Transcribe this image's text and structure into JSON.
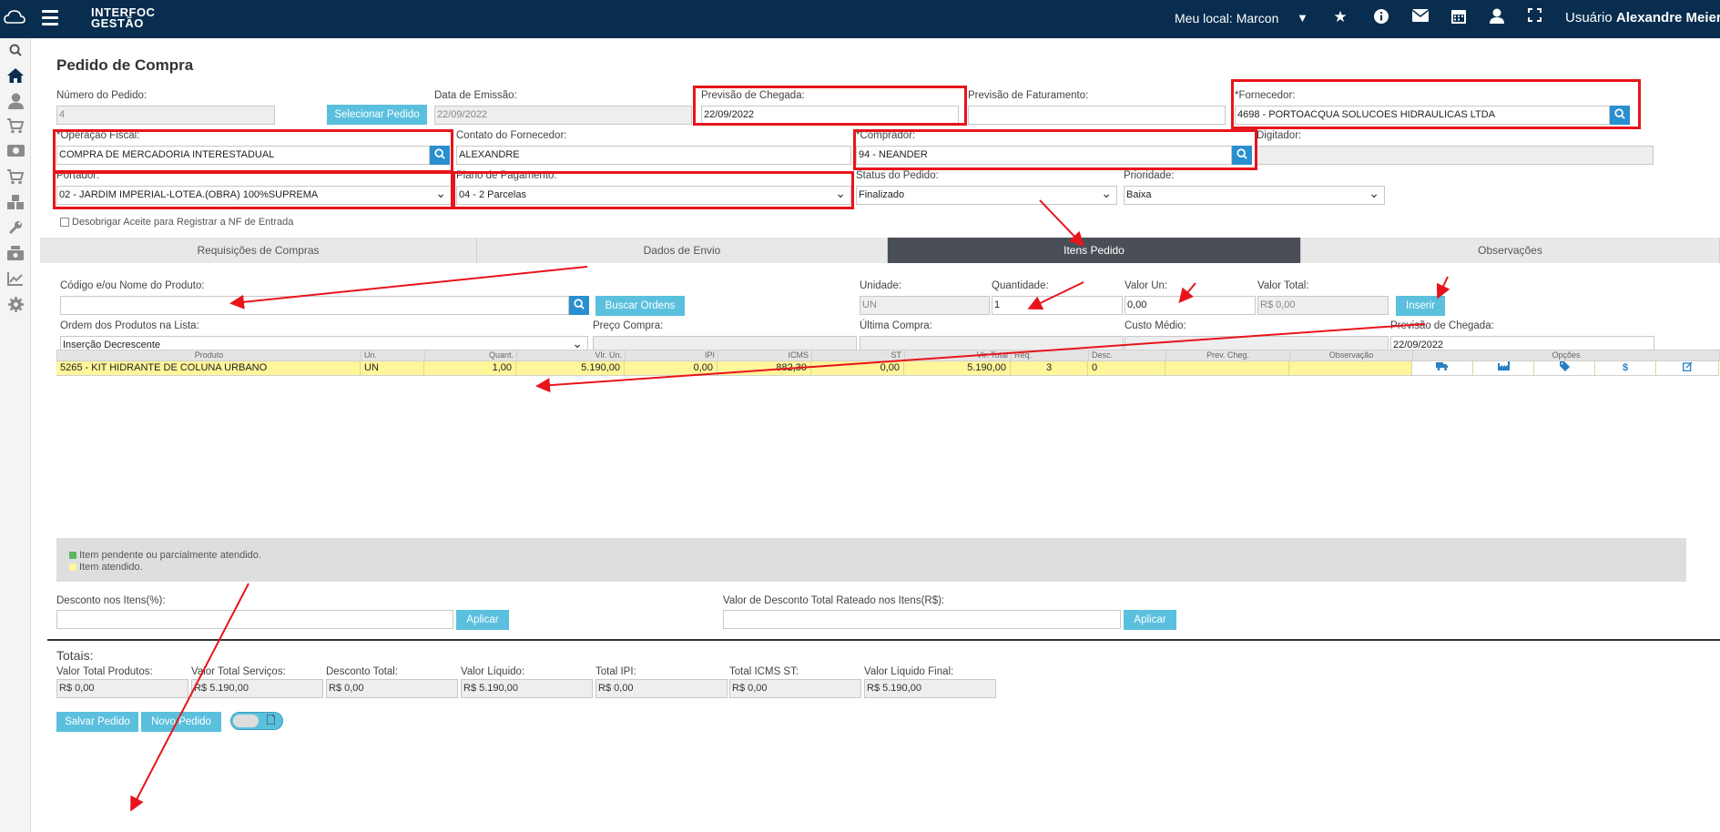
{
  "header": {
    "brand_line1": "INTERFOC",
    "brand_line2": "GESTÃO",
    "local_label": "Meu local: Marcon",
    "user_prefix": "Usuário",
    "user_name": "Alexandre Meier"
  },
  "page": {
    "title": "Pedido de Compra"
  },
  "form": {
    "numero_label": "Número do Pedido:",
    "numero_value": "4",
    "selecionar_pedido": "Selecionar Pedido",
    "emissao_label": "Data de Emissão:",
    "emissao_value": "22/09/2022",
    "prev_chegada_label": "Previsão de Chegada:",
    "prev_chegada_value": "22/09/2022",
    "prev_fat_label": "Previsão de Faturamento:",
    "prev_fat_value": "",
    "fornecedor_label": "*Fornecedor:",
    "fornecedor_value": "4698 - PORTOACQUA SOLUCOES HIDRAULICAS LTDA",
    "operacao_label": "*Operação Fiscal:",
    "operacao_value": "COMPRA DE MERCADORIA INTERESTADUAL",
    "contato_label": "Contato do Fornecedor:",
    "contato_value": "ALEXANDRE",
    "comprador_label": "*Comprador:",
    "comprador_value": "94 - NEANDER",
    "digitador_label": "Digitador:",
    "digitador_value": "",
    "portador_label": "Portador:",
    "portador_value": "02 - JARDIM IMPERIAL-LOTEA.(OBRA) 100%SUPREMA",
    "plano_label": "Plano de Pagamento:",
    "plano_value": "04 - 2 Parcelas",
    "status_label": "Status do Pedido:",
    "status_value": "Finalizado",
    "prioridade_label": "Prioridade:",
    "prioridade_value": "Baixa",
    "desobrigar_label": "Desobrigar Aceite para Registrar a NF de Entrada"
  },
  "tabs": [
    "Requisições de Compras",
    "Dados de Envio",
    "Itens Pedido",
    "Observações"
  ],
  "items_form": {
    "codigo_label": "Código e/ou Nome do Produto:",
    "codigo_value": "",
    "buscar_ordens": "Buscar Ordens",
    "unidade_label": "Unidade:",
    "unidade_value": "UN",
    "quantidade_label": "Quantidade:",
    "quantidade_value": "1",
    "valor_un_label": "Valor Un:",
    "valor_un_value": "0,00",
    "valor_total_label": "Valor Total:",
    "valor_total_value": "R$ 0,00",
    "inserir": "Inserir",
    "ordem_label": "Ordem dos Produtos na Lista:",
    "ordem_value": "Inserção Decrescente",
    "preco_label": "Preço Compra:",
    "preco_value": "",
    "ultima_label": "Última Compra:",
    "ultima_value": "",
    "custo_label": "Custo Médio:",
    "custo_value": "",
    "prev_label": "Previsão de Chegada:",
    "prev_value": "22/09/2022"
  },
  "grid": {
    "columns": [
      "Produto",
      "Un.",
      "Quant.",
      "Vlr. Un.",
      "IPI",
      "ICMS",
      "ST",
      "Vlr. Total",
      "Req.",
      "Desc.",
      "Prev. Cheg.",
      "Observação",
      "Opções"
    ],
    "rows": [
      {
        "produto": "5265 - KIT HIDRANTE DE COLUNA URBANO",
        "un": "UN",
        "quant": "1,00",
        "vlr_un": "5.190,00",
        "ipi": "0,00",
        "icms": "882,30",
        "st": "0,00",
        "vlr_total": "5.190,00",
        "req": "3",
        "desc": "0",
        "prev": "",
        "obs": ""
      }
    ]
  },
  "legend": {
    "pendente": "Item pendente ou parcialmente atendido.",
    "atendido": "Item atendido.",
    "pendente_color": "#5cb85c",
    "atendido_color": "#fff59a"
  },
  "discount": {
    "itens_label": "Desconto nos Itens(%):",
    "itens_value": "",
    "rateado_label": "Valor de Desconto Total Rateado nos Itens(R$):",
    "rateado_value": "",
    "aplicar": "Aplicar"
  },
  "totals": {
    "title": "Totais:",
    "items": [
      {
        "label": "Valor Total Produtos:",
        "value": "R$ 0,00"
      },
      {
        "label": "Valor Total Serviços:",
        "value": "R$ 5.190,00"
      },
      {
        "label": "Desconto Total:",
        "value": "R$ 0,00"
      },
      {
        "label": "Valor Líquido:",
        "value": "R$ 5.190,00"
      },
      {
        "label": "Total IPI:",
        "value": "R$ 0,00"
      },
      {
        "label": "Total ICMS ST:",
        "value": "R$ 0,00"
      },
      {
        "label": "Valor Líquido Final:",
        "value": "R$ 5.190,00"
      }
    ]
  },
  "actions": {
    "salvar": "Salvar Pedido",
    "novo": "Novo Pedido"
  },
  "colors": {
    "topbar": "#082d4f",
    "accent": "#5bc0de",
    "annotation": "#e8141b"
  }
}
